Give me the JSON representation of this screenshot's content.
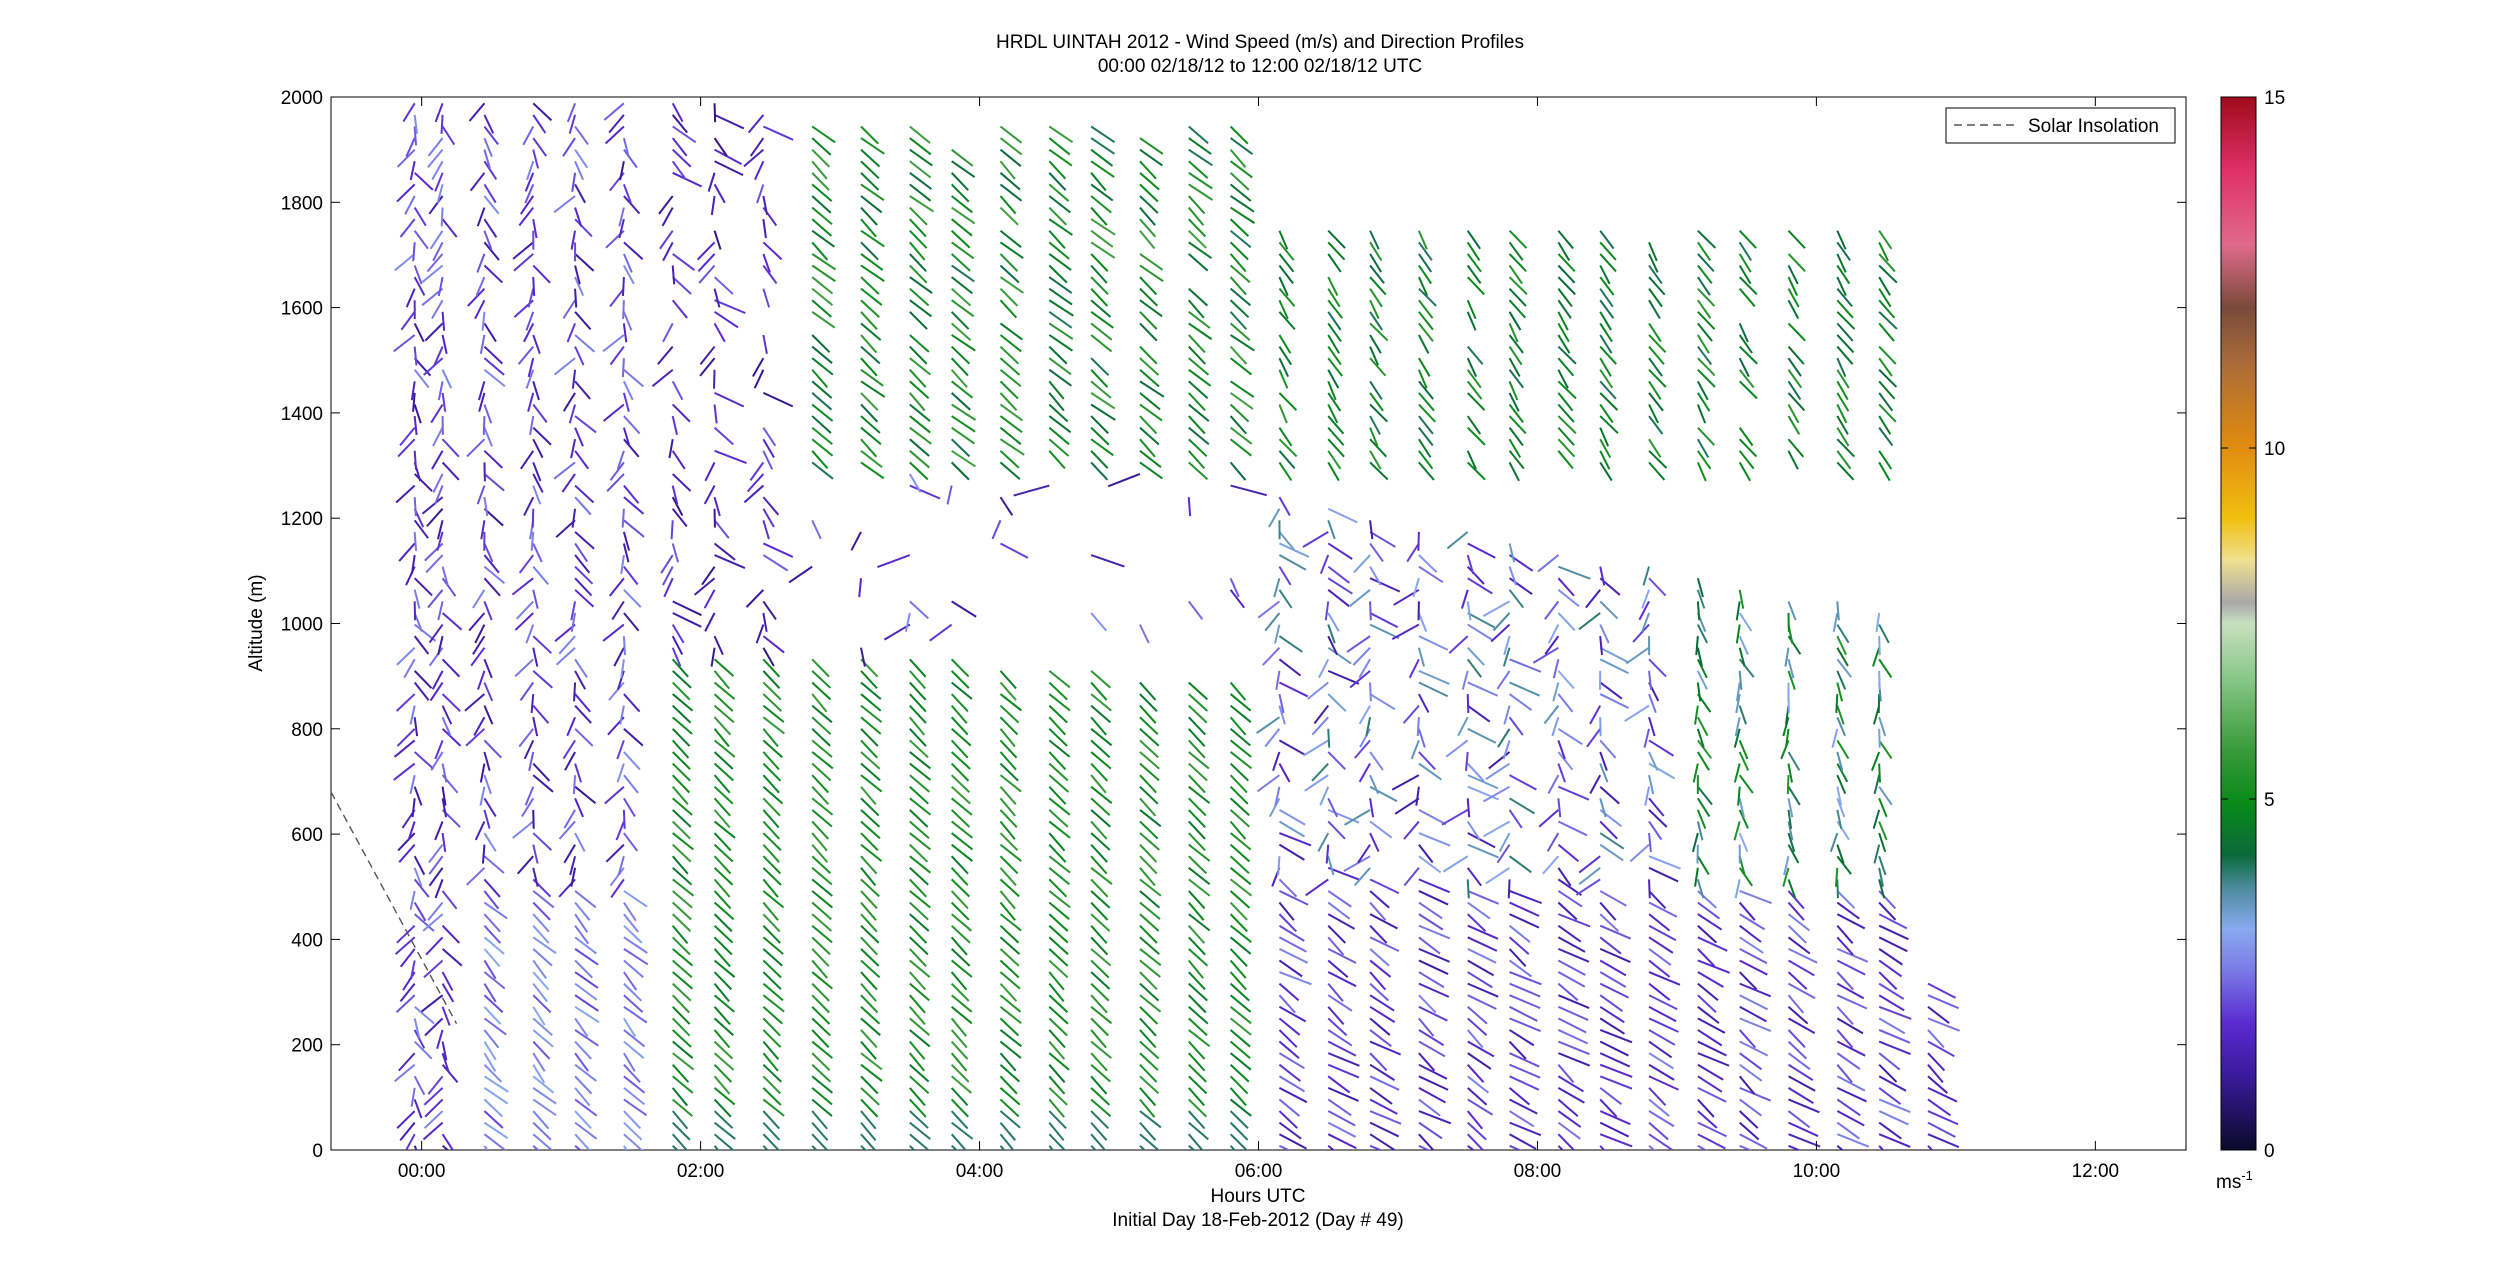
{
  "chart_data": {
    "type": "scatter",
    "subtype": "wind-barb-profile",
    "title": "HRDL UINTAH 2012 - Wind Speed (m/s) and Direction Profiles",
    "subtitle": "00:00 02/18/12 to 12:00 02/18/12  UTC",
    "xlabel": "Hours UTC",
    "xlabel2": "Initial Day 18-Feb-2012 (Day # 49)",
    "ylabel": "Altitude (m)",
    "xlim": [
      -0.65,
      12.65
    ],
    "ylim": [
      0,
      2000
    ],
    "xticks": [
      0,
      2,
      4,
      6,
      8,
      10,
      12
    ],
    "xtick_labels": [
      "00:00",
      "02:00",
      "04:00",
      "06:00",
      "08:00",
      "10:00",
      "12:00"
    ],
    "yticks": [
      0,
      200,
      400,
      600,
      800,
      1000,
      1200,
      1400,
      1600,
      1800,
      2000
    ],
    "ytick_labels": [
      "0",
      "200",
      "400",
      "600",
      "800",
      "1000",
      "1200",
      "1400",
      "1600",
      "1800",
      "2000"
    ],
    "legend": {
      "entries": [
        "Solar Insolation"
      ],
      "placement": "top-right"
    },
    "grid": false,
    "colorbar": {
      "range": [
        0,
        15
      ],
      "ticks": [
        0,
        5,
        10,
        15
      ],
      "tick_labels": [
        "0",
        "5",
        "10",
        "15"
      ],
      "unit": "ms",
      "unit_exp": "-1",
      "colors": [
        [
          0,
          "#0a0a2a"
        ],
        [
          0.07,
          "#3a1a9a"
        ],
        [
          0.12,
          "#5a2ad0"
        ],
        [
          0.17,
          "#7a7ae6"
        ],
        [
          0.21,
          "#88aaf0"
        ],
        [
          0.25,
          "#4a8a9a"
        ],
        [
          0.28,
          "#0a6a3a"
        ],
        [
          0.33,
          "#0a8a1a"
        ],
        [
          0.38,
          "#3a9a3a"
        ],
        [
          0.45,
          "#8ac88a"
        ],
        [
          0.5,
          "#c8e0c0"
        ],
        [
          0.52,
          "#a8a8a8"
        ],
        [
          0.56,
          "#f0e090"
        ],
        [
          0.6,
          "#f0c010"
        ],
        [
          0.67,
          "#e08a10"
        ],
        [
          0.75,
          "#a86a3a"
        ],
        [
          0.8,
          "#7a4a3a"
        ],
        [
          0.86,
          "#e06a8a"
        ],
        [
          0.93,
          "#e0306a"
        ],
        [
          1.0,
          "#a00a1a"
        ]
      ]
    },
    "solar_insolation": [
      [
        -0.65,
        680
      ],
      [
        0.25,
        240
      ]
    ],
    "profile_times": [
      -0.05,
      0.15,
      0.45,
      0.8,
      1.1,
      1.45,
      1.8,
      2.1,
      2.45,
      2.8,
      3.15,
      3.5,
      3.8,
      4.15,
      4.5,
      4.8,
      5.15,
      5.5,
      5.8,
      6.15,
      6.5,
      6.8,
      7.15,
      7.5,
      7.8,
      8.15,
      8.45,
      8.8,
      9.15,
      9.45,
      9.8,
      10.15,
      10.45,
      10.8
    ],
    "profiles_summary": [
      {
        "time_range": "00:00-01:30",
        "altitude_range": [
          0,
          2000
        ],
        "typical_speed_ms": 1.5
      },
      {
        "time_range": "01:30-06:00",
        "altitude_range": [
          0,
          900
        ],
        "typical_speed_ms": 5
      },
      {
        "time_range": "02:30-10:30",
        "altitude_range": [
          1300,
          1900
        ],
        "typical_speed_ms": 5
      },
      {
        "time_range": "06:00-10:45",
        "altitude_range": [
          0,
          1250
        ],
        "typical_speed_ms": 1.5
      }
    ]
  }
}
